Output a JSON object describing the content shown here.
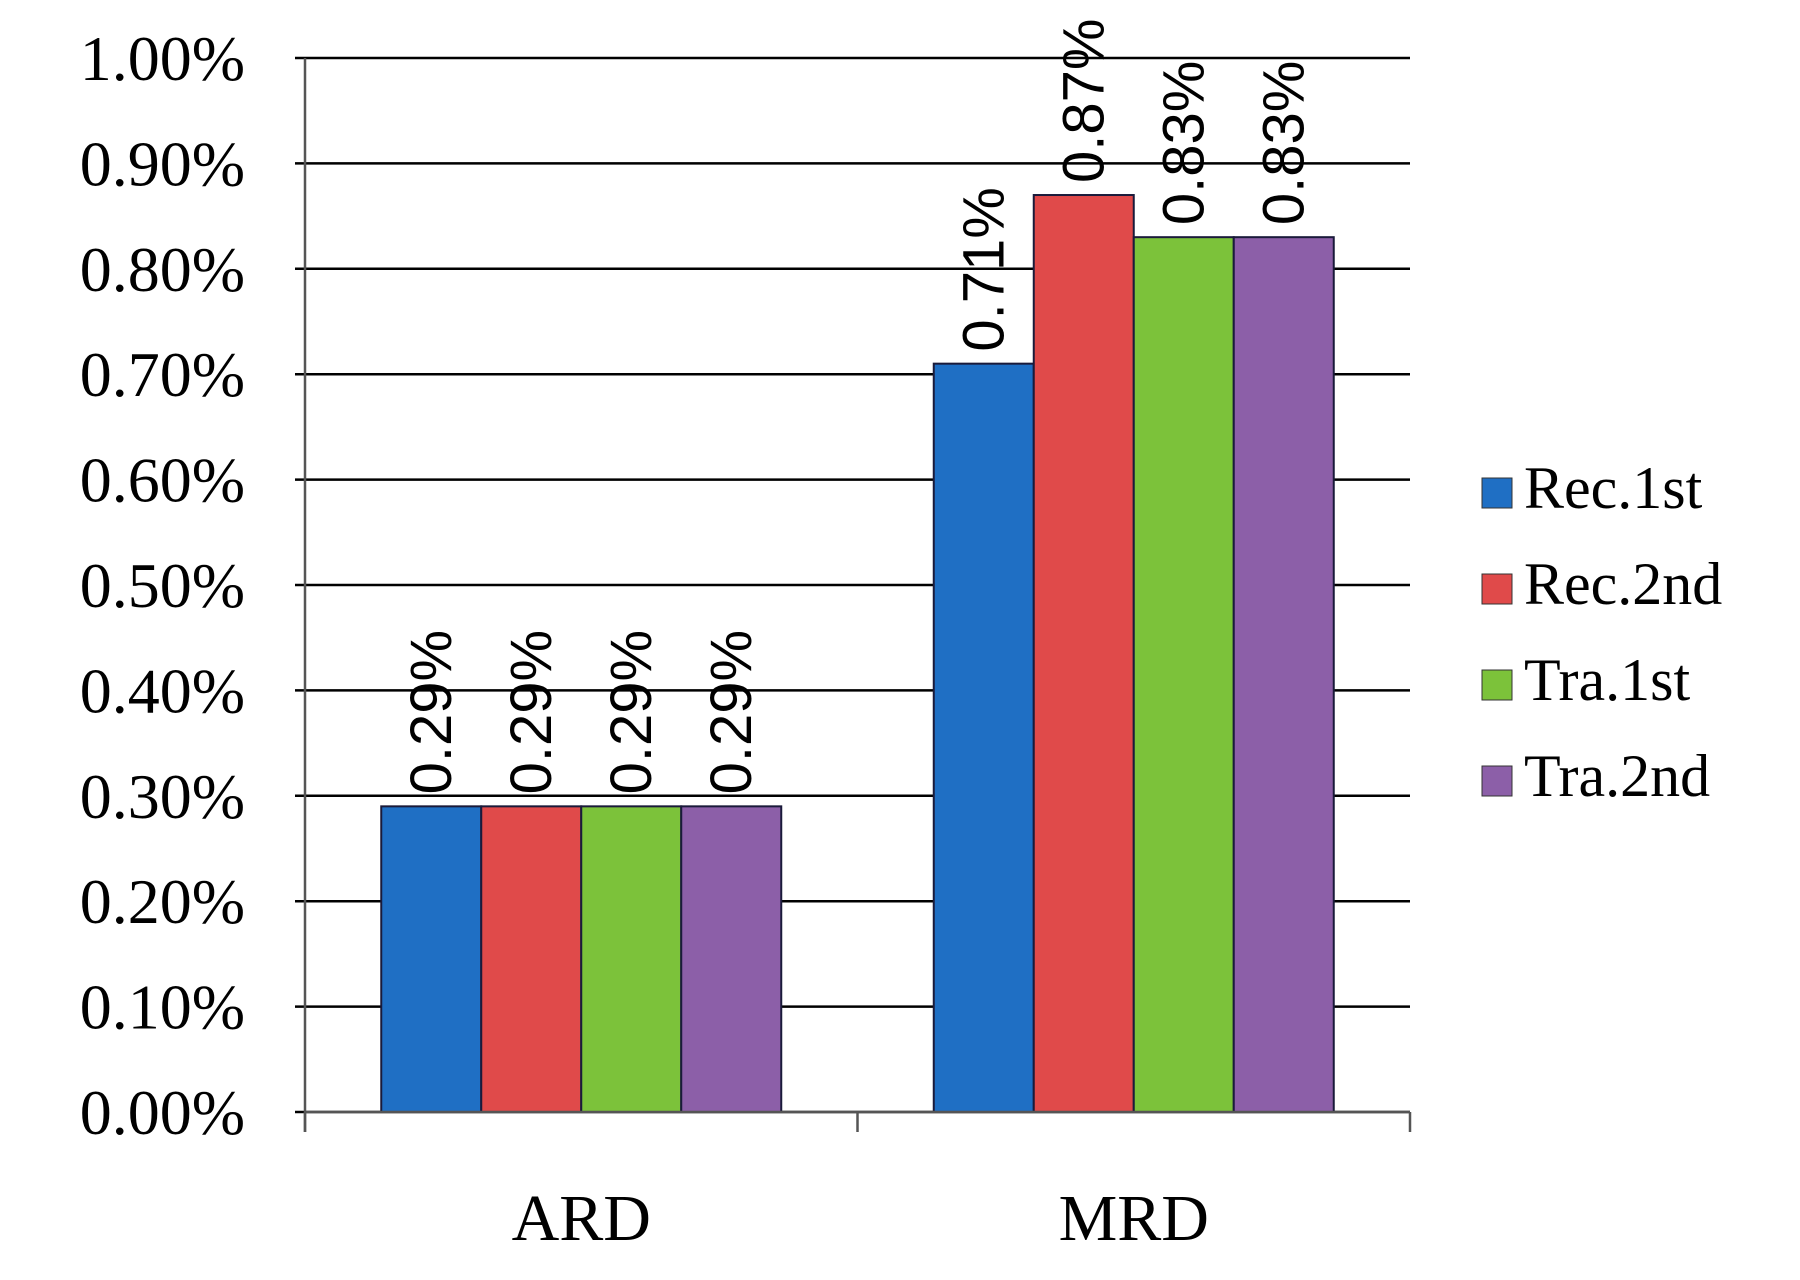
{
  "chart_data": {
    "type": "bar",
    "title": "",
    "xlabel": "",
    "ylabel": "",
    "categories": [
      "ARD",
      "MRD"
    ],
    "ylim": [
      0,
      1.0
    ],
    "y_ticks": [
      "0.00%",
      "0.10%",
      "0.20%",
      "0.30%",
      "0.40%",
      "0.50%",
      "0.60%",
      "0.70%",
      "0.80%",
      "0.90%",
      "1.00%"
    ],
    "y_tick_values": [
      0,
      0.1,
      0.2,
      0.3,
      0.4,
      0.5,
      0.6,
      0.7,
      0.8,
      0.9,
      1.0
    ],
    "grid": true,
    "legend_position": "right",
    "series": [
      {
        "name": "Rec.1st",
        "color": "#1f6fc4",
        "values": [
          0.29,
          0.71
        ],
        "labels": [
          "0.29%",
          "0.71%"
        ]
      },
      {
        "name": "Rec.2nd",
        "color": "#e04a4a",
        "values": [
          0.29,
          0.87
        ],
        "labels": [
          "0.29%",
          "0.87%"
        ]
      },
      {
        "name": "Tra.1st",
        "color": "#7cc23a",
        "values": [
          0.29,
          0.83
        ],
        "labels": [
          "0.29%",
          "0.83%"
        ]
      },
      {
        "name": "Tra.2nd",
        "color": "#8c5fa8",
        "values": [
          0.29,
          0.83
        ],
        "labels": [
          "0.29%",
          "0.83%"
        ]
      }
    ]
  }
}
